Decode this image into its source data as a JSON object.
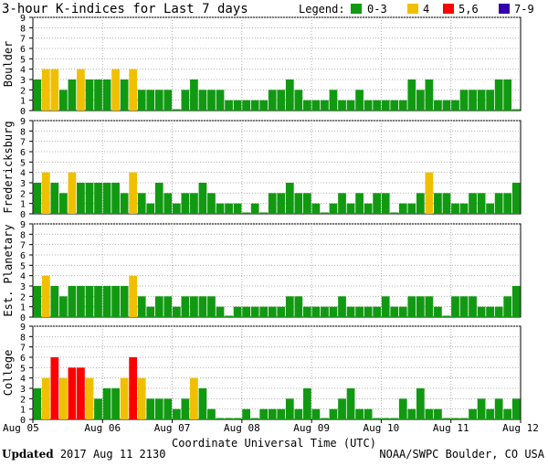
{
  "title": "3-hour K-indices for Last 7 days",
  "legend": {
    "label": "Legend:",
    "items": [
      {
        "label": "0-3",
        "color": "#119911"
      },
      {
        "label": "4",
        "color": "#f0c000"
      },
      {
        "label": "5,6",
        "color": "#ff0000"
      },
      {
        "label": "7-9",
        "color": "#3300aa"
      }
    ]
  },
  "footer": {
    "updated_label": "Updated",
    "updated_value": "2017 Aug 11 2130",
    "credit": "NOAA/SWPC Boulder, CO USA"
  },
  "chart_data": [
    {
      "type": "bar",
      "title": "3-hour K-indices for Last 7 days",
      "ylabel": "Boulder",
      "xlabel": "Coordinate Universal Time (UTC)",
      "ylim": [
        0,
        9
      ],
      "yticks": [
        "0",
        "1",
        "2",
        "3",
        "4",
        "5",
        "6",
        "7",
        "8",
        "9"
      ],
      "xticks": [
        "Aug 05",
        "Aug 06",
        "Aug 07",
        "Aug 08",
        "Aug 09",
        "Aug 10",
        "Aug 11",
        "Aug 12"
      ],
      "values": [
        3,
        4,
        4,
        2,
        3,
        4,
        3,
        3,
        3,
        4,
        3,
        4,
        2,
        2,
        2,
        2,
        0,
        2,
        3,
        2,
        2,
        2,
        1,
        1,
        1,
        1,
        1,
        2,
        2,
        3,
        2,
        1,
        1,
        1,
        2,
        1,
        1,
        2,
        1,
        1,
        1,
        1,
        1,
        3,
        2,
        3,
        1,
        1,
        1,
        2,
        2,
        2,
        2,
        3,
        3,
        0
      ]
    },
    {
      "type": "bar",
      "ylabel": "Fredericksburg",
      "ylim": [
        0,
        9
      ],
      "yticks": [
        "0",
        "1",
        "2",
        "3",
        "4",
        "5",
        "6",
        "7",
        "8",
        "9"
      ],
      "values": [
        3,
        4,
        3,
        2,
        4,
        3,
        3,
        3,
        3,
        3,
        2,
        4,
        2,
        1,
        3,
        2,
        1,
        2,
        2,
        3,
        2,
        1,
        1,
        1,
        0,
        1,
        0,
        2,
        2,
        3,
        2,
        2,
        1,
        0,
        1,
        2,
        1,
        2,
        1,
        2,
        2,
        0,
        1,
        1,
        2,
        4,
        2,
        2,
        1,
        1,
        2,
        2,
        1,
        2,
        2,
        3,
        0
      ]
    },
    {
      "type": "bar",
      "ylabel": "Est. Planetary",
      "ylim": [
        0,
        9
      ],
      "yticks": [
        "0",
        "1",
        "2",
        "3",
        "4",
        "5",
        "6",
        "7",
        "8",
        "9"
      ],
      "values": [
        3,
        4,
        3,
        2,
        3,
        3,
        3,
        3,
        3,
        3,
        3,
        4,
        2,
        1,
        2,
        2,
        1,
        2,
        2,
        2,
        2,
        1,
        0,
        1,
        1,
        1,
        1,
        1,
        1,
        2,
        2,
        1,
        1,
        1,
        1,
        2,
        1,
        1,
        1,
        1,
        2,
        1,
        1,
        2,
        2,
        2,
        1,
        0,
        2,
        2,
        2,
        1,
        1,
        1,
        2,
        3,
        0
      ]
    },
    {
      "type": "bar",
      "ylabel": "College",
      "ylim": [
        0,
        9
      ],
      "yticks": [
        "0",
        "1",
        "2",
        "3",
        "4",
        "5",
        "6",
        "7",
        "8",
        "9"
      ],
      "values": [
        3,
        4,
        6,
        4,
        5,
        5,
        4,
        2,
        3,
        3,
        4,
        6,
        4,
        2,
        2,
        2,
        1,
        2,
        4,
        3,
        1,
        0,
        0,
        0,
        1,
        0,
        1,
        1,
        1,
        2,
        1,
        3,
        1,
        0,
        1,
        2,
        3,
        1,
        1,
        0,
        0,
        0,
        2,
        1,
        3,
        1,
        1,
        0,
        0,
        0,
        1,
        2,
        1,
        2,
        1,
        2,
        2,
        0
      ]
    }
  ]
}
